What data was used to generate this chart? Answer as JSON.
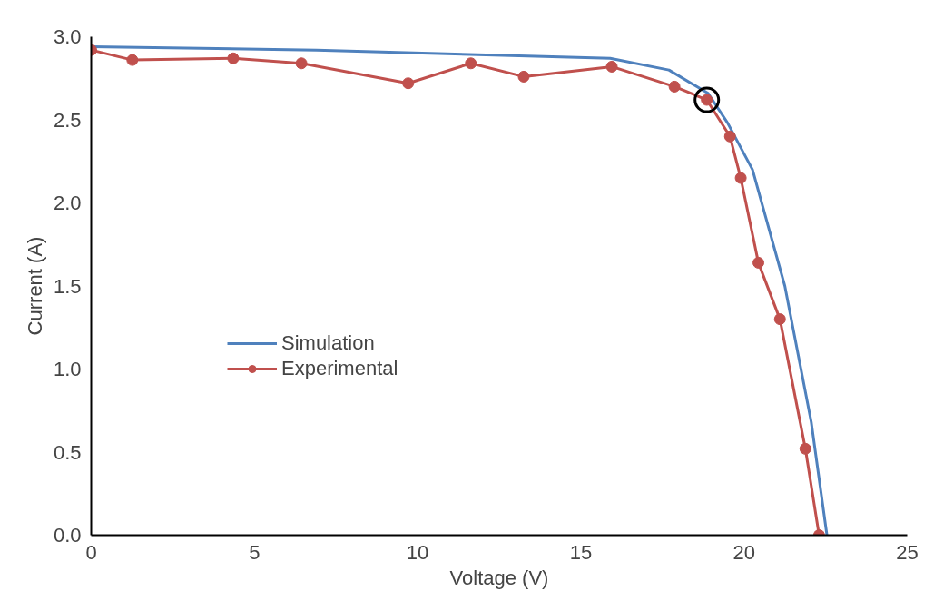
{
  "chart_data": {
    "type": "line",
    "xlabel": "Voltage (V)",
    "ylabel": "Current (A)",
    "xlim": [
      0,
      25
    ],
    "xticks": [
      0,
      5,
      10,
      15,
      20,
      25
    ],
    "ylim": [
      0,
      3
    ],
    "yticks": [
      {
        "value": 0,
        "label": "0.0"
      },
      {
        "value": 0.5,
        "label": "0.5"
      },
      {
        "value": 1,
        "label": "1.0"
      },
      {
        "value": 1.5,
        "label": "1.5"
      },
      {
        "value": 2,
        "label": "2.0"
      },
      {
        "value": 2.5,
        "label": "2.5"
      },
      {
        "value": 3,
        "label": "3.0"
      }
    ],
    "grid": false,
    "legend": "left",
    "series": [
      {
        "name": "Simulation",
        "color": "#4f81bd",
        "marker": "none",
        "x": [
          0,
          6.9,
          15.9,
          17.7,
          18.9,
          19.5,
          20.26,
          21.25,
          22.06,
          22.54
        ],
        "values": [
          2.94,
          2.92,
          2.87,
          2.8,
          2.66,
          2.48,
          2.2,
          1.5,
          0.68,
          0
        ]
      },
      {
        "name": "Experimental",
        "color": "#c0504d",
        "marker": "circle",
        "x": [
          0,
          1.26,
          4.35,
          6.44,
          9.71,
          11.63,
          13.25,
          15.95,
          17.87,
          18.86,
          19.57,
          19.9,
          20.44,
          21.1,
          21.88,
          22.3
        ],
        "values": [
          2.92,
          2.86,
          2.87,
          2.84,
          2.72,
          2.84,
          2.76,
          2.82,
          2.7,
          2.62,
          2.4,
          2.15,
          1.64,
          1.3,
          0.52,
          0
        ]
      },
      {
        "type": "scatter",
        "color": "#000000",
        "marker": "circle",
        "x": [
          18.86
        ],
        "values": [
          2.62
        ]
      }
    ]
  }
}
